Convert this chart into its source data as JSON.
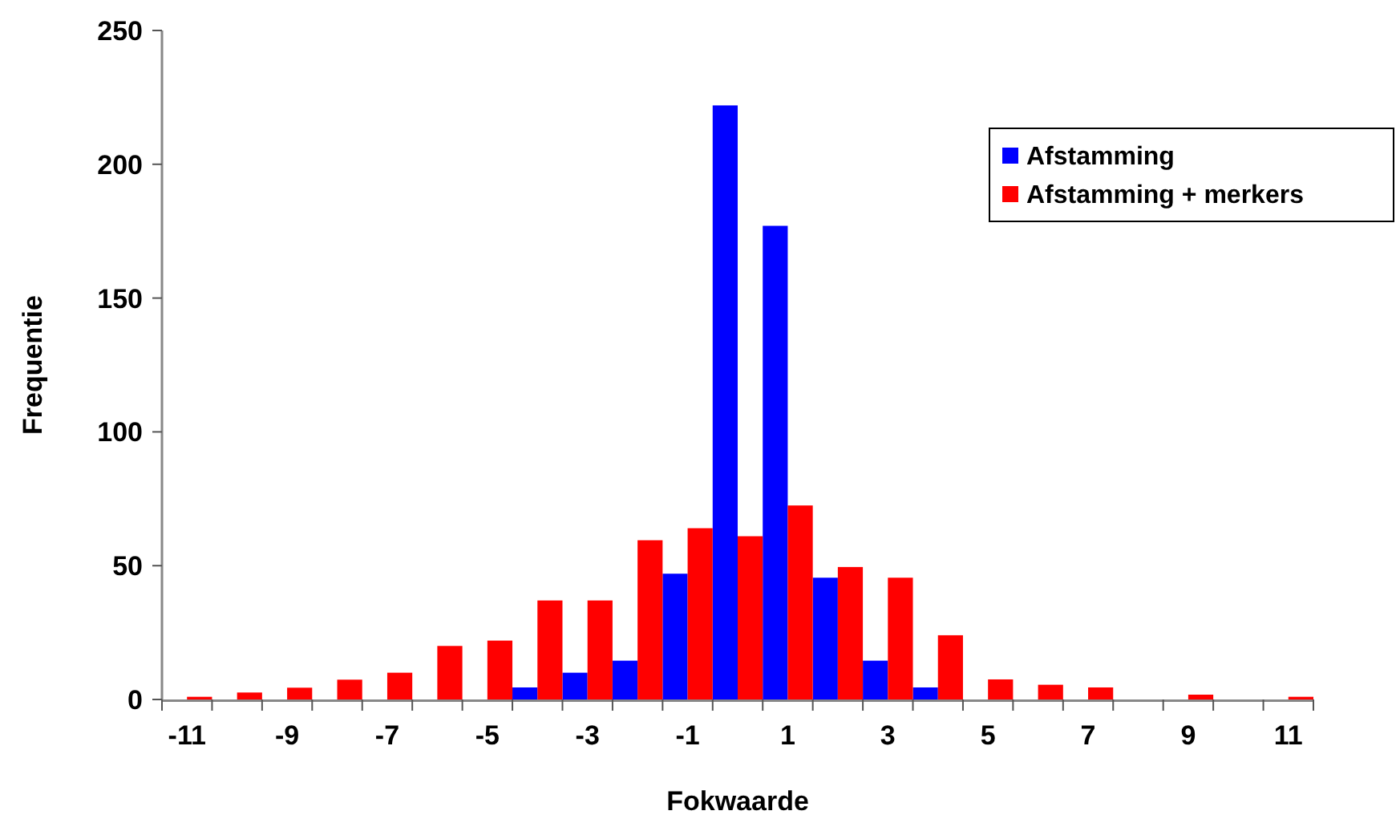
{
  "chart_data": {
    "type": "bar",
    "xlabel": "Fokwaarde",
    "ylabel": "Frequentie",
    "categories": [
      "-11",
      null,
      "-9",
      null,
      "-7",
      null,
      "-5",
      null,
      "-3",
      null,
      "-1",
      null,
      "1",
      null,
      "3",
      null,
      "5",
      null,
      "7",
      null,
      "9",
      null,
      "11"
    ],
    "series": [
      {
        "name": "Afstamming",
        "color": "#0000ff",
        "values": [
          0,
          0,
          0,
          0,
          0,
          0,
          0,
          4.5,
          10,
          14.5,
          47,
          222,
          177,
          45.5,
          14.5,
          4.5,
          0,
          0,
          0,
          0,
          0,
          0,
          0
        ]
      },
      {
        "name": "Afstamming + merkers",
        "color": "#ff0000",
        "values": [
          1,
          2.6,
          4.4,
          7.4,
          10,
          20,
          22,
          37,
          37,
          59.5,
          64,
          61,
          72.5,
          49.5,
          45.5,
          24,
          7.5,
          5.5,
          4.5,
          0,
          1.8,
          0,
          1
        ]
      }
    ],
    "ylim": [
      0,
      250
    ],
    "yticks": [
      0,
      50,
      100,
      150,
      200,
      250
    ],
    "legend": "top right",
    "grid": false
  }
}
